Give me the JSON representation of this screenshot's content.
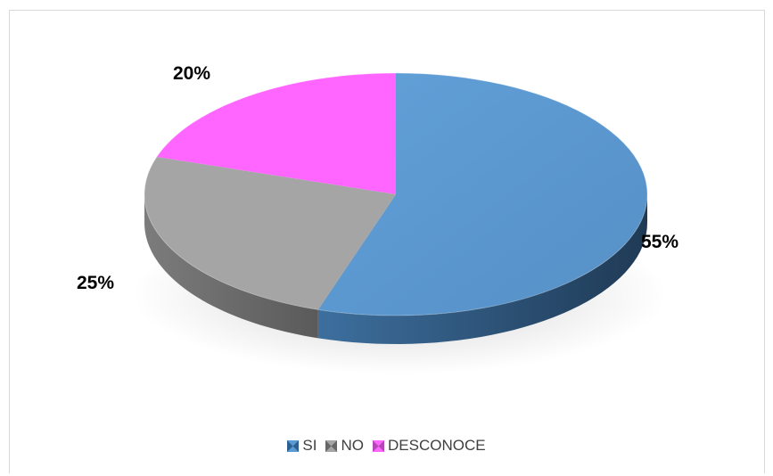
{
  "chart_data": {
    "type": "pie",
    "title": "",
    "categories": [
      "SI",
      "NO",
      "DESCONOCE"
    ],
    "values": [
      55,
      25,
      20
    ],
    "labels": [
      "55%",
      "25%",
      "20%"
    ],
    "colors": {
      "SI": "#5b9bd5",
      "NO": "#a5a5a5",
      "DESCONOCE": "#ff66ff"
    },
    "legend_position": "bottom",
    "style": "3d"
  }
}
